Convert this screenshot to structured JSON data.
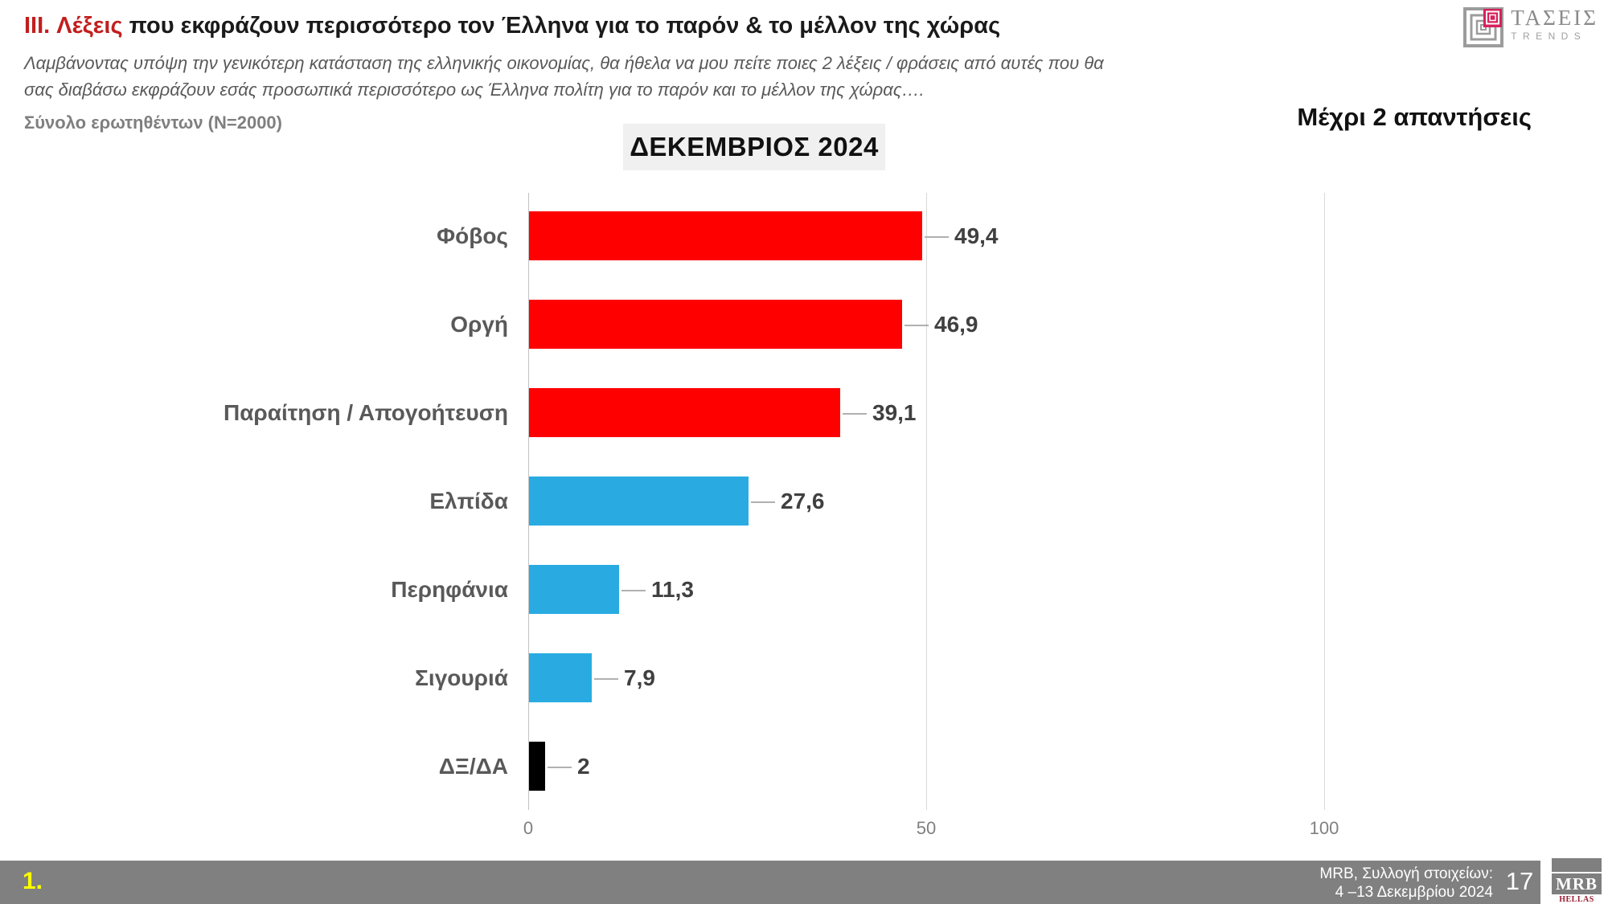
{
  "header": {
    "title_red": "III. Λέξεις",
    "title_rest": " που εκφράζουν περισσότερο τον Έλληνα για το παρόν & το μέλλον της χώρας",
    "subtitle_lines": [
      "Λαμβάνοντας υπόψη την γενικότερη κατάσταση της ελληνικής οικονομίας, θα ήθελα να μου πείτε ποιες 2  λέξεις / φράσεις από αυτές που θα",
      "σας διαβάσω εκφράζουν εσάς προσωπικά περισσότερο ως Έλληνα πολίτη για το παρόν και το μέλλον της χώρας…."
    ],
    "sample": "Σύνολο ερωτηθέντων (N=2000)",
    "answers_note": "Μέχρι 2 απαντήσεις"
  },
  "brand": {
    "taseis_name": "ΤΑΣΕΙΣ",
    "taseis_sub": "TRENDS",
    "taseis_icon": "concentric-squares-icon",
    "mrb_name": "MRB",
    "mrb_sub": "HELLAS S.A"
  },
  "chart_data": {
    "type": "bar",
    "orientation": "horizontal",
    "title": "ΔΕΚΕΜΒΡΙΟΣ 2024",
    "categories": [
      "Φόβος",
      "Οργή",
      "Παραίτηση / Απογοήτευση",
      "Ελπίδα",
      "Περηφάνια",
      "Σιγουριά",
      "ΔΞ/ΔΑ"
    ],
    "values": [
      49.4,
      46.9,
      39.1,
      27.6,
      11.3,
      7.9,
      2
    ],
    "values_display": [
      "49,4",
      "46,9",
      "39,1",
      "27,6",
      "11,3",
      "7,9",
      "2"
    ],
    "bar_colors": [
      "#ff0000",
      "#ff0000",
      "#ff0000",
      "#29abe2",
      "#29abe2",
      "#29abe2",
      "#000000"
    ],
    "xlim": [
      0,
      100
    ],
    "x_ticks": [
      0,
      50,
      100
    ],
    "grid": true,
    "legend": "none",
    "data_labels": true
  },
  "colors": {
    "title_accent": "#c21e1e",
    "bar_red": "#ff0000",
    "bar_blue": "#29abe2",
    "bar_black": "#000000",
    "footer_bar": "#808080",
    "slide_number_yellow": "#ffff00",
    "taseis_pink": "#d6215c",
    "mrb_red": "#9b1b30",
    "gridline": "#d9d9d9"
  },
  "footer": {
    "slide_number": "1.",
    "source_lines": [
      "MRB, Συλλογή στοιχείων:",
      "4 –13 Δεκεμβρίου 2024"
    ],
    "page_number": "17"
  }
}
